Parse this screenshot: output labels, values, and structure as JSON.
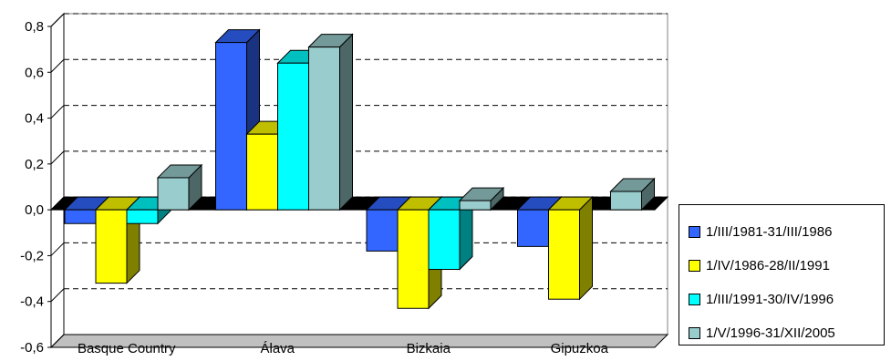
{
  "chart_data": {
    "type": "bar",
    "categories": [
      "Basque Country",
      "Álava",
      "Bizkaia",
      "Gipuzkoa"
    ],
    "series": [
      {
        "name": "1/III/1981-31/III/1986",
        "color": "#3366ff",
        "values": [
          -0.06,
          0.73,
          -0.18,
          -0.16
        ]
      },
      {
        "name": "1/IV/1986-28/II/1991",
        "color": "#ffff00",
        "values": [
          -0.32,
          0.33,
          -0.43,
          -0.39
        ]
      },
      {
        "name": "1/III/1991-30/IV/1996",
        "color": "#00ffff",
        "values": [
          -0.06,
          0.64,
          -0.26,
          0.0
        ]
      },
      {
        "name": "1/V/1996-31/XII/2005",
        "color": "#99cccc",
        "values": [
          0.14,
          0.71,
          0.04,
          0.08
        ]
      }
    ],
    "yticks": [
      "0,8",
      "0,6",
      "0,4",
      "0,2",
      "0,0",
      "-0,2",
      "-0,4",
      "-0,6"
    ],
    "ylim": [
      -0.6,
      0.8
    ],
    "grid": "dashed horizontal",
    "legend": "right",
    "title": "",
    "xlabel": "",
    "ylabel": ""
  }
}
